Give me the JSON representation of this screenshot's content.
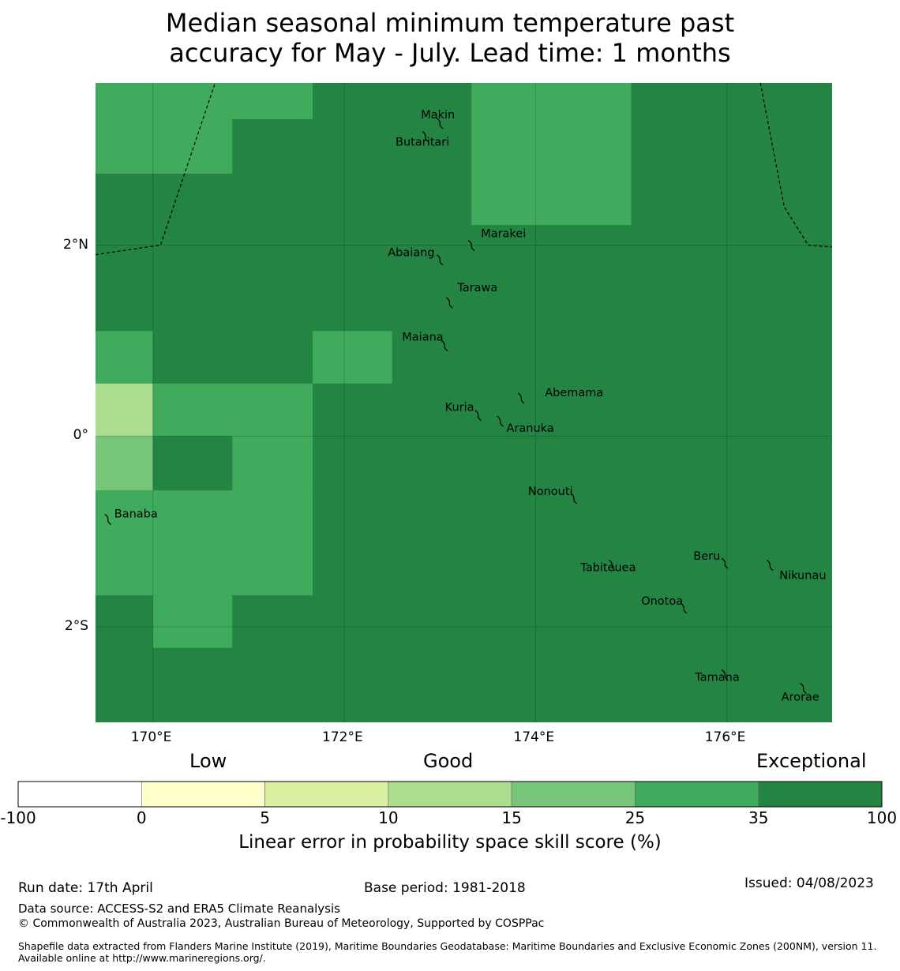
{
  "title_line1": "Median seasonal minimum temperature past",
  "title_line2": "accuracy for May - July. Lead time: 1 months",
  "map": {
    "lon_range": [
      169.4,
      177.1
    ],
    "lat_range": [
      -3.0,
      3.7
    ],
    "lon_ticks": [
      {
        "value": 170,
        "label": "170°E"
      },
      {
        "value": 172,
        "label": "172°E"
      },
      {
        "value": 174,
        "label": "174°E"
      },
      {
        "value": 176,
        "label": "176°E"
      }
    ],
    "lat_ticks": [
      {
        "value": 2,
        "label": "2°N"
      },
      {
        "value": 0,
        "label": "0°"
      },
      {
        "value": -2,
        "label": "2°S"
      }
    ],
    "cells": [
      {
        "lon0": 169.4,
        "lon1": 170.0,
        "lat0": 2.75,
        "lat1": 3.7,
        "color": "#41ab5d"
      },
      {
        "lon0": 170.0,
        "lon1": 170.83,
        "lat0": 2.75,
        "lat1": 3.7,
        "color": "#41ab5d"
      },
      {
        "lon0": 170.83,
        "lon1": 171.67,
        "lat0": 3.32,
        "lat1": 3.7,
        "color": "#41ab5d"
      },
      {
        "lon0": 173.33,
        "lon1": 175.0,
        "lat0": 2.21,
        "lat1": 3.7,
        "color": "#41ab5d"
      },
      {
        "lon0": 169.4,
        "lon1": 170.0,
        "lat0": 0.55,
        "lat1": 1.1,
        "color": "#41ab5d"
      },
      {
        "lon0": 171.67,
        "lon1": 172.5,
        "lat0": 0.55,
        "lat1": 1.1,
        "color": "#41ab5d"
      },
      {
        "lon0": 169.4,
        "lon1": 170.0,
        "lat0": 0.0,
        "lat1": 0.55,
        "color": "#addd8e"
      },
      {
        "lon0": 170.0,
        "lon1": 171.67,
        "lat0": 0.0,
        "lat1": 0.55,
        "color": "#41ab5d"
      },
      {
        "lon0": 169.4,
        "lon1": 170.0,
        "lat0": -0.57,
        "lat1": 0.0,
        "color": "#78c679"
      },
      {
        "lon0": 170.83,
        "lon1": 171.67,
        "lat0": -0.57,
        "lat1": 0.0,
        "color": "#41ab5d"
      },
      {
        "lon0": 169.4,
        "lon1": 171.67,
        "lat0": -1.67,
        "lat1": -0.57,
        "color": "#41ab5d"
      },
      {
        "lon0": 170.0,
        "lon1": 170.83,
        "lat0": -2.22,
        "lat1": -1.67,
        "color": "#41ab5d"
      }
    ],
    "background_color": "#238443",
    "boundary_west": [
      [
        169.4,
        1.9
      ],
      [
        170.08,
        2.0
      ],
      [
        170.65,
        3.7
      ]
    ],
    "boundary_east": [
      [
        176.35,
        3.7
      ],
      [
        176.6,
        2.4
      ],
      [
        176.85,
        2.0
      ],
      [
        177.1,
        1.98
      ]
    ],
    "islands": [
      {
        "name": "Makin",
        "lon": 173.0,
        "lat": 3.28,
        "label_dx": -24,
        "label_dy": -6
      },
      {
        "name": "Butaritari",
        "lon": 172.85,
        "lat": 3.14,
        "label_dx": -38,
        "label_dy": 12
      },
      {
        "name": "Marakei",
        "lon": 173.33,
        "lat": 2.0,
        "label_dx": 12,
        "label_dy": -10
      },
      {
        "name": "Abaiang",
        "lon": 173.0,
        "lat": 1.85,
        "label_dx": -66,
        "label_dy": -4
      },
      {
        "name": "Tarawa",
        "lon": 173.1,
        "lat": 1.4,
        "label_dx": 10,
        "label_dy": -14
      },
      {
        "name": "Maiana",
        "lon": 173.05,
        "lat": 0.95,
        "label_dx": -54,
        "label_dy": -6
      },
      {
        "name": "Abemama",
        "lon": 173.85,
        "lat": 0.4,
        "label_dx": 30,
        "label_dy": -2
      },
      {
        "name": "Kuria",
        "lon": 173.4,
        "lat": 0.22,
        "label_dx": -42,
        "label_dy": -5
      },
      {
        "name": "Aranuka",
        "lon": 173.63,
        "lat": 0.16,
        "label_dx": 8,
        "label_dy": 14
      },
      {
        "name": "Nonouti",
        "lon": 174.4,
        "lat": -0.65,
        "label_dx": -58,
        "label_dy": -4
      },
      {
        "name": "Banaba",
        "lon": 169.53,
        "lat": -0.87,
        "label_dx": 8,
        "label_dy": -2
      },
      {
        "name": "Tabiteuea",
        "lon": 174.8,
        "lat": -1.35,
        "label_dx": -40,
        "label_dy": 8
      },
      {
        "name": "Beru",
        "lon": 175.98,
        "lat": -1.33,
        "label_dx": -40,
        "label_dy": -4
      },
      {
        "name": "Nikunau",
        "lon": 176.45,
        "lat": -1.35,
        "label_dx": 12,
        "label_dy": 18
      },
      {
        "name": "Onotoa",
        "lon": 175.55,
        "lat": -1.8,
        "label_dx": -54,
        "label_dy": -4
      },
      {
        "name": "Tamana",
        "lon": 175.98,
        "lat": -2.5,
        "label_dx": -38,
        "label_dy": 8
      },
      {
        "name": "Arorae",
        "lon": 176.8,
        "lat": -2.64,
        "label_dx": -28,
        "label_dy": 16
      }
    ]
  },
  "colorbar": {
    "category_labels": [
      "Low",
      "Good",
      "Exceptional"
    ],
    "bounds": [
      "-100",
      "0",
      "5",
      "10",
      "15",
      "25",
      "35",
      "100"
    ],
    "colors": [
      "#ffffff",
      "#ffffcc",
      "#d9f0a3",
      "#addd8e",
      "#78c679",
      "#41ab5d",
      "#238443"
    ],
    "title": "Linear error in probability space skill score (%)"
  },
  "footer": {
    "run_date": "Run date: 17th April",
    "base_period": "Base period: 1981-2018",
    "issued": "Issued: 04/08/2023",
    "data_source": "Data source: ACCESS-S2 and ERA5 Climate Reanalysis",
    "copyright": "© Commonwealth of Australia 2023, Australian Bureau of Meteorology, Supported by COSPPac",
    "shapefile": "Shapefile data extracted from Flanders Marine Institute (2019), Maritime Boundaries Geodatabase: Maritime Boundaries and Exclusive Economic Zones (200NM), version 11. Available online at http://www.marineregions.org/."
  }
}
